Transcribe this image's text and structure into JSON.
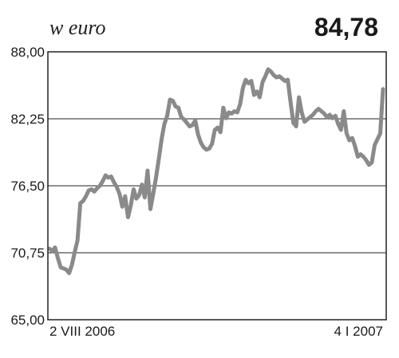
{
  "chart_data": {
    "type": "line",
    "unit_label": "w euro",
    "current_value": "84,78",
    "ylim": [
      65.0,
      88.0
    ],
    "y_ticks": [
      {
        "value": 88.0,
        "label": "88,00"
      },
      {
        "value": 82.25,
        "label": "82,25"
      },
      {
        "value": 76.5,
        "label": "76,50"
      },
      {
        "value": 70.75,
        "label": "70,75"
      },
      {
        "value": 65.0,
        "label": "65,00"
      }
    ],
    "x_labels": [
      {
        "index": 0,
        "label": "2 VIII 2006",
        "anchor": "start"
      },
      {
        "index": 125,
        "label": "4 I 2007",
        "anchor": "end"
      }
    ],
    "grid": true,
    "colors": {
      "line": "#8a8a8a",
      "grid": "#222222",
      "frame": "#222222"
    },
    "series": [
      {
        "values": [
          71.1,
          70.9,
          71.2,
          70.3,
          69.5,
          69.4,
          69.3,
          69.0,
          69.7,
          70.8,
          71.8,
          75.0,
          75.2,
          75.6,
          76.1,
          76.2,
          76.0,
          76.3,
          76.5,
          76.9,
          77.4,
          77.2,
          77.3,
          76.8,
          76.4,
          75.8,
          74.7,
          75.6,
          73.8,
          74.8,
          76.2,
          75.4,
          75.7,
          76.6,
          75.5,
          77.8,
          74.5,
          75.8,
          77.2,
          78.8,
          80.5,
          81.8,
          82.5,
          83.9,
          83.8,
          83.3,
          83.2,
          82.4,
          82.2,
          81.9,
          81.6,
          81.7,
          82.1,
          80.9,
          80.2,
          79.8,
          79.6,
          79.7,
          80.1,
          81.3,
          81.5,
          81.1,
          83.2,
          82.3,
          82.8,
          82.7,
          82.9,
          82.8,
          83.5,
          84.9,
          85.6,
          85.3,
          85.5,
          84.3,
          84.6,
          84.1,
          85.4,
          85.9,
          86.5,
          86.3,
          86.0,
          85.8,
          85.9,
          85.7,
          85.5,
          85.6,
          83.7,
          81.9,
          81.6,
          84.1,
          82.8,
          82.0,
          82.2,
          82.4,
          82.6,
          82.9,
          83.1,
          82.9,
          82.7,
          82.4,
          82.6,
          82.3,
          82.5,
          81.8,
          81.3,
          82.9,
          81.0,
          80.4,
          80.6,
          79.9,
          79.0,
          79.2,
          79.0,
          78.7,
          78.3,
          78.5,
          80.0,
          80.5,
          81.0,
          84.8
        ]
      }
    ]
  }
}
